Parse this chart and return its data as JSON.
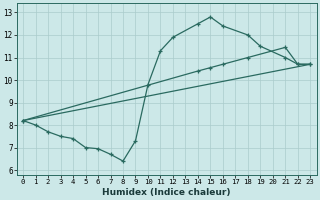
{
  "xlabel": "Humidex (Indice chaleur)",
  "bg_color": "#cce8e8",
  "grid_color": "#aacccc",
  "line_color": "#2a6a60",
  "xlim": [
    -0.5,
    23.5
  ],
  "ylim": [
    5.8,
    13.4
  ],
  "xticks": [
    0,
    1,
    2,
    3,
    4,
    5,
    6,
    7,
    8,
    9,
    10,
    11,
    12,
    13,
    14,
    15,
    16,
    17,
    18,
    19,
    20,
    21,
    22,
    23
  ],
  "yticks": [
    6,
    7,
    8,
    9,
    10,
    11,
    12,
    13
  ],
  "series1_x": [
    0,
    1,
    2,
    3,
    4,
    5,
    6,
    7,
    8,
    9,
    10,
    11,
    12,
    14,
    15,
    16,
    18,
    19,
    21,
    22,
    23
  ],
  "series1_y": [
    8.2,
    8.0,
    7.7,
    7.5,
    7.4,
    7.0,
    6.95,
    6.7,
    6.4,
    7.3,
    9.8,
    11.3,
    11.9,
    12.5,
    12.8,
    12.4,
    12.0,
    11.5,
    11.0,
    10.7,
    10.7
  ],
  "series2_x": [
    0,
    14,
    15,
    16,
    18,
    21,
    22,
    23
  ],
  "series2_y": [
    8.2,
    10.4,
    10.55,
    10.7,
    11.0,
    11.45,
    10.7,
    10.7
  ],
  "series3_x": [
    0,
    23
  ],
  "series3_y": [
    8.2,
    10.7
  ]
}
